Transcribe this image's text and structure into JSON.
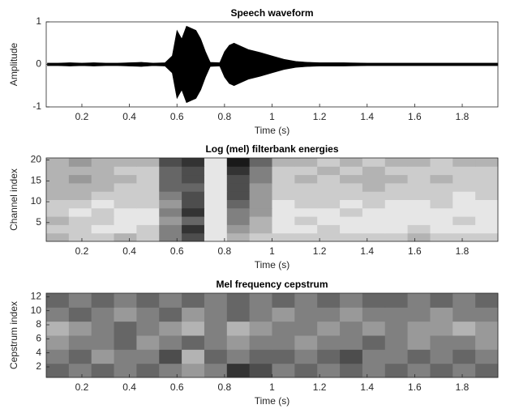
{
  "chart_data": [
    {
      "type": "area",
      "title": "Speech waveform",
      "xlabel": "Time (s)",
      "ylabel": "Amplitude",
      "color": "#000000",
      "x": [
        0.055,
        0.1,
        0.15,
        0.2,
        0.25,
        0.3,
        0.35,
        0.4,
        0.45,
        0.5,
        0.55,
        0.58,
        0.6,
        0.62,
        0.64,
        0.66,
        0.68,
        0.7,
        0.72,
        0.74,
        0.78,
        0.8,
        0.82,
        0.84,
        0.86,
        0.88,
        0.9,
        0.95,
        1.0,
        1.05,
        1.1,
        1.15,
        1.2,
        1.3,
        1.4,
        1.5,
        1.6,
        1.7,
        1.8,
        1.9,
        1.95
      ],
      "values": [
        0.03,
        0.03,
        0.04,
        0.03,
        0.04,
        0.03,
        0.03,
        0.04,
        0.05,
        0.03,
        0.04,
        0.2,
        0.8,
        0.6,
        0.9,
        0.85,
        0.8,
        0.6,
        0.3,
        0.05,
        0.04,
        0.3,
        0.45,
        0.5,
        0.45,
        0.4,
        0.35,
        0.28,
        0.2,
        0.12,
        0.07,
        0.05,
        0.04,
        0.04,
        0.03,
        0.03,
        0.03,
        0.03,
        0.03,
        0.03,
        0.03
      ],
      "xlim": [
        0.05,
        1.95
      ],
      "ylim": [
        -1,
        1
      ],
      "xticks": [
        0.2,
        0.4,
        0.6,
        0.8,
        1,
        1.2,
        1.4,
        1.6,
        1.8
      ],
      "yticks": [
        -1,
        0,
        1
      ]
    },
    {
      "type": "heatmap",
      "title": "Log (mel) filterbank energies",
      "xlabel": "Time (s)",
      "ylabel": "Channel index",
      "xlim": [
        0.05,
        1.95
      ],
      "ylim": [
        0.5,
        20.5
      ],
      "xticks": [
        0.2,
        0.4,
        0.6,
        0.8,
        1,
        1.2,
        1.4,
        1.6,
        1.8
      ],
      "yticks": [
        5,
        10,
        15,
        20
      ],
      "z": [
        [
          0.3,
          0.2,
          0.2,
          0.3,
          0.2,
          0.5,
          0.7,
          0.1,
          0.3,
          0.2,
          0.2,
          0.2,
          0.2,
          0.2,
          0.2,
          0.2,
          0.3,
          0.2,
          0.2,
          0.2
        ],
        [
          0.2,
          0.2,
          0.1,
          0.1,
          0.2,
          0.5,
          0.8,
          0.1,
          0.4,
          0.3,
          0.1,
          0.1,
          0.2,
          0.1,
          0.1,
          0.1,
          0.2,
          0.1,
          0.1,
          0.1
        ],
        [
          0.3,
          0.2,
          0.2,
          0.1,
          0.1,
          0.4,
          0.6,
          0.1,
          0.5,
          0.3,
          0.1,
          0.2,
          0.1,
          0.1,
          0.1,
          0.1,
          0.1,
          0.1,
          0.2,
          0.1
        ],
        [
          0.2,
          0.1,
          0.2,
          0.1,
          0.1,
          0.5,
          0.8,
          0.1,
          0.5,
          0.4,
          0.1,
          0.1,
          0.1,
          0.2,
          0.1,
          0.1,
          0.1,
          0.1,
          0.1,
          0.1
        ],
        [
          0.2,
          0.2,
          0.1,
          0.2,
          0.2,
          0.4,
          0.7,
          0.1,
          0.6,
          0.4,
          0.1,
          0.2,
          0.2,
          0.1,
          0.2,
          0.1,
          0.1,
          0.2,
          0.1,
          0.1
        ],
        [
          0.3,
          0.3,
          0.2,
          0.2,
          0.2,
          0.5,
          0.7,
          0.1,
          0.7,
          0.4,
          0.2,
          0.2,
          0.2,
          0.2,
          0.2,
          0.2,
          0.2,
          0.2,
          0.1,
          0.2
        ],
        [
          0.3,
          0.3,
          0.3,
          0.2,
          0.2,
          0.6,
          0.6,
          0.1,
          0.7,
          0.4,
          0.2,
          0.2,
          0.2,
          0.2,
          0.3,
          0.2,
          0.2,
          0.2,
          0.2,
          0.2
        ],
        [
          0.3,
          0.4,
          0.3,
          0.3,
          0.2,
          0.6,
          0.7,
          0.1,
          0.7,
          0.5,
          0.2,
          0.3,
          0.2,
          0.3,
          0.3,
          0.3,
          0.2,
          0.3,
          0.2,
          0.2
        ],
        [
          0.3,
          0.3,
          0.3,
          0.2,
          0.2,
          0.6,
          0.7,
          0.1,
          0.8,
          0.5,
          0.2,
          0.2,
          0.3,
          0.2,
          0.3,
          0.2,
          0.2,
          0.2,
          0.2,
          0.2
        ],
        [
          0.3,
          0.4,
          0.3,
          0.3,
          0.3,
          0.7,
          0.8,
          0.1,
          0.9,
          0.6,
          0.3,
          0.3,
          0.2,
          0.3,
          0.2,
          0.3,
          0.3,
          0.2,
          0.3,
          0.3
        ]
      ]
    },
    {
      "type": "heatmap",
      "title": "Mel frequency cepstrum",
      "xlabel": "Time (s)",
      "ylabel": "Cepstrum index",
      "xlim": [
        0.05,
        1.95
      ],
      "ylim": [
        0.5,
        12.5
      ],
      "xticks": [
        0.2,
        0.4,
        0.6,
        0.8,
        1,
        1.2,
        1.4,
        1.6,
        1.8
      ],
      "yticks": [
        2,
        4,
        6,
        8,
        10,
        12
      ],
      "z": [
        [
          0.6,
          0.5,
          0.6,
          0.5,
          0.6,
          0.5,
          0.4,
          0.5,
          0.8,
          0.7,
          0.5,
          0.6,
          0.5,
          0.6,
          0.5,
          0.6,
          0.5,
          0.6,
          0.5,
          0.6
        ],
        [
          0.5,
          0.6,
          0.4,
          0.5,
          0.5,
          0.7,
          0.3,
          0.6,
          0.5,
          0.6,
          0.6,
          0.5,
          0.6,
          0.7,
          0.5,
          0.5,
          0.6,
          0.5,
          0.6,
          0.5
        ],
        [
          0.4,
          0.5,
          0.5,
          0.6,
          0.4,
          0.5,
          0.6,
          0.5,
          0.4,
          0.5,
          0.5,
          0.4,
          0.5,
          0.5,
          0.6,
          0.5,
          0.4,
          0.5,
          0.5,
          0.4
        ],
        [
          0.3,
          0.4,
          0.5,
          0.6,
          0.5,
          0.4,
          0.3,
          0.5,
          0.3,
          0.4,
          0.5,
          0.5,
          0.4,
          0.5,
          0.4,
          0.5,
          0.4,
          0.4,
          0.3,
          0.4
        ],
        [
          0.5,
          0.6,
          0.5,
          0.4,
          0.5,
          0.6,
          0.4,
          0.5,
          0.6,
          0.5,
          0.4,
          0.5,
          0.5,
          0.4,
          0.5,
          0.5,
          0.5,
          0.4,
          0.5,
          0.5
        ],
        [
          0.6,
          0.5,
          0.6,
          0.5,
          0.6,
          0.5,
          0.6,
          0.5,
          0.6,
          0.5,
          0.6,
          0.5,
          0.6,
          0.5,
          0.6,
          0.6,
          0.5,
          0.6,
          0.5,
          0.6
        ]
      ]
    }
  ]
}
